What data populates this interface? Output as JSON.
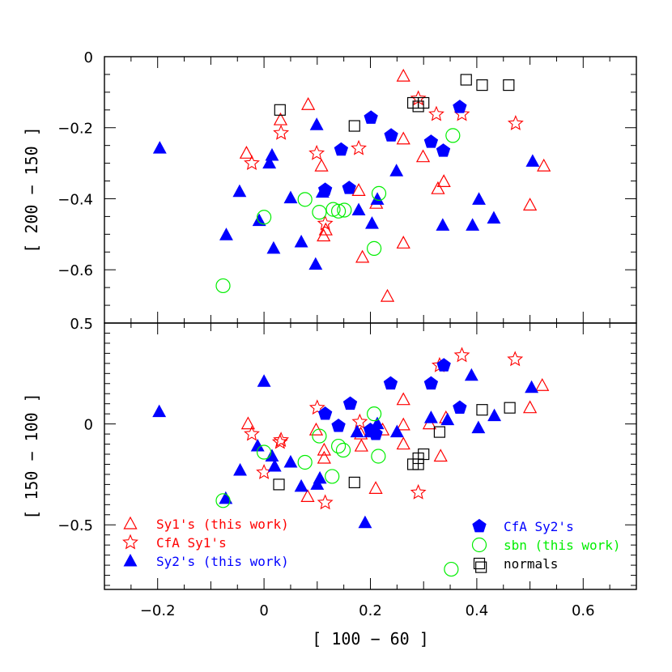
{
  "chart_data": [
    {
      "type": "scatter",
      "panel": "top",
      "xlabel": "",
      "ylabel": "[ 200 − 150 ]",
      "xlim": [
        -0.3,
        0.7
      ],
      "ylim": [
        -0.75,
        0
      ],
      "yticks": [
        0,
        -0.2,
        -0.4,
        -0.6
      ],
      "ytick_labels": [
        "0",
        "−0.2",
        "−0.4",
        "−0.6"
      ],
      "grid": false,
      "series": [
        {
          "name": "Sy1's (this work)",
          "marker": "triangle-open",
          "color": "#ff0000",
          "points": [
            [
              0.262,
              -0.055
            ],
            [
              0.083,
              -0.135
            ],
            [
              0.031,
              -0.178
            ],
            [
              0.262,
              -0.232
            ],
            [
              -0.033,
              -0.272
            ],
            [
              0.299,
              -0.282
            ],
            [
              0.108,
              -0.308
            ],
            [
              0.526,
              -0.308
            ],
            [
              0.338,
              -0.352
            ],
            [
              0.327,
              -0.372
            ],
            [
              0.178,
              -0.377
            ],
            [
              0.211,
              -0.413
            ],
            [
              0.5,
              -0.418
            ],
            [
              0.116,
              -0.488
            ],
            [
              0.112,
              -0.505
            ],
            [
              0.262,
              -0.525
            ],
            [
              0.185,
              -0.565
            ],
            [
              0.232,
              -0.675
            ]
          ]
        },
        {
          "name": "CfA Sy1's",
          "marker": "star-open",
          "color": "#ff0000",
          "points": [
            [
              0.29,
              -0.118
            ],
            [
              0.324,
              -0.162
            ],
            [
              0.372,
              -0.162
            ],
            [
              0.473,
              -0.188
            ],
            [
              0.032,
              -0.215
            ],
            [
              0.178,
              -0.258
            ],
            [
              0.099,
              -0.272
            ],
            [
              -0.023,
              -0.3
            ],
            [
              0.115,
              -0.47
            ]
          ]
        },
        {
          "name": "Sy2's (this work)",
          "marker": "triangle-filled",
          "color": "#0000ff",
          "points": [
            [
              -0.196,
              -0.258
            ],
            [
              0.099,
              -0.192
            ],
            [
              0.249,
              -0.322
            ],
            [
              0.505,
              -0.295
            ],
            [
              0.01,
              -0.3
            ],
            [
              0.015,
              -0.278
            ],
            [
              -0.046,
              -0.38
            ],
            [
              0.05,
              -0.398
            ],
            [
              -0.071,
              -0.502
            ],
            [
              -0.009,
              -0.462
            ],
            [
              0.11,
              -0.382
            ],
            [
              0.178,
              -0.432
            ],
            [
              0.203,
              -0.47
            ],
            [
              0.213,
              -0.402
            ],
            [
              0.404,
              -0.402
            ],
            [
              0.018,
              -0.54
            ],
            [
              0.07,
              -0.522
            ],
            [
              0.097,
              -0.585
            ],
            [
              0.336,
              -0.475
            ],
            [
              0.392,
              -0.475
            ],
            [
              0.432,
              -0.455
            ]
          ]
        },
        {
          "name": "CfA Sy2's",
          "marker": "pentagon-filled",
          "color": "#0000ff",
          "points": [
            [
              0.368,
              -0.142
            ],
            [
              0.201,
              -0.172
            ],
            [
              0.239,
              -0.222
            ],
            [
              0.314,
              -0.24
            ],
            [
              0.337,
              -0.265
            ],
            [
              0.145,
              -0.262
            ],
            [
              0.115,
              -0.375
            ],
            [
              0.16,
              -0.37
            ]
          ]
        },
        {
          "name": "sbn (this work)",
          "marker": "circle-open",
          "color": "#00ee00",
          "points": [
            [
              0.355,
              -0.222
            ],
            [
              0.077,
              -0.402
            ],
            [
              0.216,
              -0.385
            ],
            [
              0.104,
              -0.438
            ],
            [
              0.13,
              -0.43
            ],
            [
              0.14,
              -0.435
            ],
            [
              0.151,
              -0.432
            ],
            [
              0.0,
              -0.452
            ],
            [
              0.207,
              -0.54
            ],
            [
              -0.077,
              -0.645
            ]
          ]
        },
        {
          "name": "normals",
          "marker": "square-open",
          "color": "#000000",
          "points": [
            [
              0.38,
              -0.065
            ],
            [
              0.41,
              -0.08
            ],
            [
              0.46,
              -0.08
            ],
            [
              0.28,
              -0.13
            ],
            [
              0.3,
              -0.13
            ],
            [
              0.29,
              -0.14
            ],
            [
              0.03,
              -0.15
            ],
            [
              0.17,
              -0.195
            ]
          ]
        }
      ]
    },
    {
      "type": "scatter",
      "panel": "bottom",
      "xlabel": "[ 100 − 60 ]",
      "ylabel": "[ 150 − 100 ]",
      "xlim": [
        -0.3,
        0.7
      ],
      "ylim": [
        -0.82,
        0.5
      ],
      "xticks": [
        -0.2,
        0,
        0.2,
        0.4,
        0.6
      ],
      "xtick_labels": [
        "−0.2",
        "0",
        "0.2",
        "0.4",
        "0.6"
      ],
      "yticks": [
        0.5,
        0,
        -0.5
      ],
      "ytick_labels": [
        "0.5",
        "0",
        "−0.5"
      ],
      "grid": false,
      "legend_location": "bottom",
      "series": [
        {
          "name": "Sy1's (this work)",
          "marker": "triangle-open",
          "color": "#ff0000",
          "points": [
            [
              0.262,
              0.12
            ],
            [
              0.342,
              0.03
            ],
            [
              0.262,
              -0.005
            ],
            [
              0.311,
              0.0
            ],
            [
              -0.03,
              0.0
            ],
            [
              0.523,
              0.19
            ],
            [
              0.5,
              0.08
            ],
            [
              0.098,
              -0.03
            ],
            [
              0.223,
              -0.03
            ],
            [
              0.113,
              -0.13
            ],
            [
              0.113,
              -0.17
            ],
            [
              0.262,
              -0.1
            ],
            [
              0.183,
              -0.11
            ],
            [
              0.182,
              -0.05
            ],
            [
              0.332,
              -0.16
            ],
            [
              0.21,
              -0.32
            ],
            [
              0.082,
              -0.36
            ]
          ]
        },
        {
          "name": "CfA Sy1's",
          "marker": "star-open",
          "color": "#ff0000",
          "points": [
            [
              0.372,
              0.34
            ],
            [
              0.472,
              0.32
            ],
            [
              0.33,
              0.29
            ],
            [
              0.1,
              0.08
            ],
            [
              0.18,
              0.01
            ],
            [
              -0.023,
              -0.05
            ],
            [
              0.032,
              -0.08
            ],
            [
              0.03,
              -0.09
            ],
            [
              0.0,
              -0.24
            ],
            [
              0.115,
              -0.39
            ],
            [
              0.29,
              -0.34
            ]
          ]
        },
        {
          "name": "Sy2's (this work)",
          "marker": "triangle-filled",
          "color": "#0000ff",
          "points": [
            [
              0.0,
              0.21
            ],
            [
              -0.197,
              0.06
            ],
            [
              0.39,
              0.24
            ],
            [
              0.503,
              0.18
            ],
            [
              0.314,
              0.03
            ],
            [
              0.345,
              0.02
            ],
            [
              0.433,
              0.04
            ],
            [
              0.213,
              0.0
            ],
            [
              0.25,
              -0.04
            ],
            [
              0.403,
              -0.02
            ],
            [
              0.175,
              -0.04
            ],
            [
              -0.012,
              -0.11
            ],
            [
              0.015,
              -0.16
            ],
            [
              0.02,
              -0.21
            ],
            [
              0.05,
              -0.19
            ],
            [
              0.2,
              -0.04
            ],
            [
              -0.045,
              -0.23
            ],
            [
              0.07,
              -0.31
            ],
            [
              0.105,
              -0.27
            ],
            [
              0.1,
              -0.3
            ],
            [
              -0.072,
              -0.37
            ],
            [
              0.19,
              -0.49
            ]
          ]
        },
        {
          "name": "CfA Sy2's",
          "marker": "pentagon-filled",
          "color": "#0000ff",
          "points": [
            [
              0.338,
              0.29
            ],
            [
              0.238,
              0.2
            ],
            [
              0.314,
              0.2
            ],
            [
              0.162,
              0.1
            ],
            [
              0.368,
              0.08
            ],
            [
              0.115,
              0.05
            ],
            [
              0.14,
              -0.01
            ],
            [
              0.2,
              -0.03
            ],
            [
              0.21,
              -0.05
            ]
          ]
        },
        {
          "name": "sbn (this work)",
          "marker": "circle-open",
          "color": "#00ee00",
          "points": [
            [
              0.207,
              0.05
            ],
            [
              0.104,
              -0.06
            ],
            [
              0.0,
              -0.14
            ],
            [
              0.14,
              -0.11
            ],
            [
              0.149,
              -0.13
            ],
            [
              0.215,
              -0.16
            ],
            [
              0.077,
              -0.19
            ],
            [
              0.128,
              -0.26
            ],
            [
              -0.077,
              -0.38
            ],
            [
              0.352,
              -0.72
            ]
          ]
        },
        {
          "name": "normals",
          "marker": "square-open",
          "color": "#000000",
          "points": [
            [
              0.41,
              0.07
            ],
            [
              0.462,
              0.08
            ],
            [
              0.33,
              -0.04
            ],
            [
              0.3,
              -0.15
            ],
            [
              0.29,
              -0.17
            ],
            [
              0.28,
              -0.2
            ],
            [
              0.29,
              -0.2
            ],
            [
              0.028,
              -0.3
            ],
            [
              0.17,
              -0.29
            ],
            [
              0.408,
              -0.71
            ]
          ]
        }
      ]
    }
  ],
  "legend": {
    "left": [
      {
        "label": "Sy1's (this work)",
        "marker": "triangle-open",
        "color": "#ff0000"
      },
      {
        "label": "CfA Sy1's",
        "marker": "star-open",
        "color": "#ff0000"
      },
      {
        "label": "Sy2's (this work)",
        "marker": "triangle-filled",
        "color": "#0000ff"
      }
    ],
    "right": [
      {
        "label": "CfA Sy2's",
        "marker": "pentagon-filled",
        "color": "#0000ff"
      },
      {
        "label": "sbn (this work)",
        "marker": "circle-open",
        "color": "#00ee00"
      },
      {
        "label": "normals",
        "marker": "square-open",
        "color": "#000000"
      }
    ]
  }
}
